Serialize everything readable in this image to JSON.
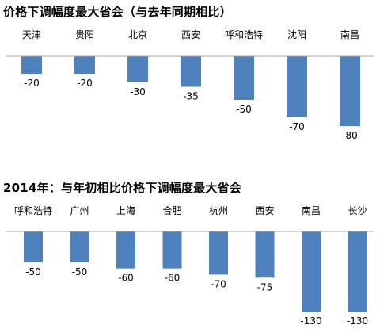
{
  "chart_data": [
    {
      "type": "bar",
      "title": "价格下调幅度最大省会（与去年同期相比）",
      "categories": [
        "天津",
        "贵阳",
        "北京",
        "西安",
        "呼和浩特",
        "沈阳",
        "南昌"
      ],
      "values": [
        -20,
        -20,
        -30,
        -35,
        -50,
        -70,
        -80
      ],
      "ylim": [
        -80,
        0
      ],
      "bar_color": "#4f81bd",
      "grid": false
    },
    {
      "type": "bar",
      "title": "2014年：与年初相比价格下调幅度最大省会",
      "categories": [
        "呼和浩特",
        "广州",
        "上海",
        "合肥",
        "杭州",
        "西安",
        "南昌",
        "长沙"
      ],
      "values": [
        -50,
        -50,
        -60,
        -60,
        -70,
        -75,
        -130,
        -130
      ],
      "ylim": [
        -130,
        0
      ],
      "bar_color": "#4f81bd",
      "grid": false
    }
  ]
}
